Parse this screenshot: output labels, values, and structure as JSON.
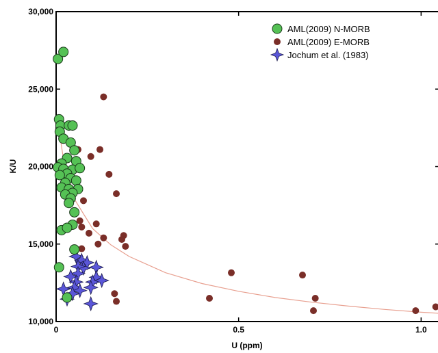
{
  "chart_data": {
    "type": "scatter",
    "xlabel": "U (ppm)",
    "ylabel": "K/U",
    "xlim": [
      0,
      1.05
    ],
    "ylim": [
      10000,
      30000
    ],
    "x_ticks": [
      0,
      0.5,
      1.0
    ],
    "x_tick_labels": [
      "0",
      "0.5",
      "1.0"
    ],
    "y_ticks": [
      10000,
      15000,
      20000,
      25000,
      30000
    ],
    "y_tick_labels": [
      "10,000",
      "15,000",
      "20,000",
      "25,000",
      "30,000"
    ],
    "legend_position": "top-right",
    "colors": {
      "n_morb": "#55c155",
      "e_morb": "#7a2e28",
      "jochum": "#5a56d8",
      "fit": "#e8a090"
    },
    "fit_curve": {
      "points": [
        {
          "x": 0.005,
          "y": 22800
        },
        {
          "x": 0.02,
          "y": 20500
        },
        {
          "x": 0.05,
          "y": 17900
        },
        {
          "x": 0.1,
          "y": 16000
        },
        {
          "x": 0.15,
          "y": 14950
        },
        {
          "x": 0.2,
          "y": 14200
        },
        {
          "x": 0.3,
          "y": 13150
        },
        {
          "x": 0.4,
          "y": 12450
        },
        {
          "x": 0.5,
          "y": 11950
        },
        {
          "x": 0.6,
          "y": 11550
        },
        {
          "x": 0.7,
          "y": 11250
        },
        {
          "x": 0.8,
          "y": 11000
        },
        {
          "x": 0.9,
          "y": 10780
        },
        {
          "x": 1.0,
          "y": 10600
        },
        {
          "x": 1.05,
          "y": 10530
        }
      ]
    },
    "series": [
      {
        "name": "AML(2009) N-MORB",
        "marker": "circle",
        "points": [
          {
            "x": 0.005,
            "y": 26950
          },
          {
            "x": 0.02,
            "y": 27400
          },
          {
            "x": 0.008,
            "y": 23050
          },
          {
            "x": 0.012,
            "y": 22650
          },
          {
            "x": 0.035,
            "y": 22650
          },
          {
            "x": 0.045,
            "y": 22650
          },
          {
            "x": 0.01,
            "y": 22250
          },
          {
            "x": 0.02,
            "y": 21800
          },
          {
            "x": 0.04,
            "y": 21550
          },
          {
            "x": 0.05,
            "y": 21050
          },
          {
            "x": 0.03,
            "y": 20550
          },
          {
            "x": 0.055,
            "y": 20350
          },
          {
            "x": 0.015,
            "y": 20200
          },
          {
            "x": 0.005,
            "y": 19950
          },
          {
            "x": 0.02,
            "y": 19850
          },
          {
            "x": 0.045,
            "y": 19800
          },
          {
            "x": 0.065,
            "y": 19900
          },
          {
            "x": 0.03,
            "y": 19550
          },
          {
            "x": 0.01,
            "y": 19450
          },
          {
            "x": 0.04,
            "y": 19250
          },
          {
            "x": 0.055,
            "y": 19100
          },
          {
            "x": 0.025,
            "y": 18950
          },
          {
            "x": 0.015,
            "y": 18650
          },
          {
            "x": 0.035,
            "y": 18550
          },
          {
            "x": 0.06,
            "y": 18550
          },
          {
            "x": 0.045,
            "y": 18300
          },
          {
            "x": 0.025,
            "y": 18200
          },
          {
            "x": 0.04,
            "y": 17950
          },
          {
            "x": 0.035,
            "y": 17650
          },
          {
            "x": 0.05,
            "y": 17050
          },
          {
            "x": 0.045,
            "y": 16250
          },
          {
            "x": 0.015,
            "y": 15900
          },
          {
            "x": 0.03,
            "y": 16050
          },
          {
            "x": 0.05,
            "y": 14650
          },
          {
            "x": 0.008,
            "y": 13500
          },
          {
            "x": 0.03,
            "y": 11550
          }
        ]
      },
      {
        "name": "AML(2009) E-MORB",
        "marker": "circle",
        "points": [
          {
            "x": 0.13,
            "y": 24500
          },
          {
            "x": 0.12,
            "y": 21100
          },
          {
            "x": 0.06,
            "y": 21100
          },
          {
            "x": 0.095,
            "y": 20650
          },
          {
            "x": 0.145,
            "y": 19500
          },
          {
            "x": 0.165,
            "y": 18250
          },
          {
            "x": 0.075,
            "y": 17800
          },
          {
            "x": 0.065,
            "y": 16500
          },
          {
            "x": 0.11,
            "y": 16300
          },
          {
            "x": 0.07,
            "y": 16100
          },
          {
            "x": 0.09,
            "y": 15700
          },
          {
            "x": 0.13,
            "y": 15400
          },
          {
            "x": 0.185,
            "y": 15550
          },
          {
            "x": 0.18,
            "y": 15300
          },
          {
            "x": 0.115,
            "y": 15000
          },
          {
            "x": 0.19,
            "y": 14850
          },
          {
            "x": 0.07,
            "y": 14700
          },
          {
            "x": 0.16,
            "y": 11800
          },
          {
            "x": 0.165,
            "y": 11300
          },
          {
            "x": 0.42,
            "y": 11500
          },
          {
            "x": 0.48,
            "y": 13150
          },
          {
            "x": 0.675,
            "y": 13000
          },
          {
            "x": 0.71,
            "y": 11500
          },
          {
            "x": 0.705,
            "y": 10700
          },
          {
            "x": 0.985,
            "y": 10700
          },
          {
            "x": 1.04,
            "y": 10950
          }
        ]
      },
      {
        "name": "Jochum et al. (1983)",
        "marker": "star",
        "points": [
          {
            "x": 0.055,
            "y": 14200
          },
          {
            "x": 0.07,
            "y": 13950
          },
          {
            "x": 0.085,
            "y": 13800
          },
          {
            "x": 0.075,
            "y": 13450
          },
          {
            "x": 0.06,
            "y": 13550
          },
          {
            "x": 0.06,
            "y": 13100
          },
          {
            "x": 0.11,
            "y": 13500
          },
          {
            "x": 0.04,
            "y": 12900
          },
          {
            "x": 0.11,
            "y": 12850
          },
          {
            "x": 0.1,
            "y": 12550
          },
          {
            "x": 0.125,
            "y": 12650
          },
          {
            "x": 0.055,
            "y": 12550
          },
          {
            "x": 0.05,
            "y": 12200
          },
          {
            "x": 0.02,
            "y": 12100
          },
          {
            "x": 0.095,
            "y": 12200
          },
          {
            "x": 0.065,
            "y": 12000
          },
          {
            "x": 0.03,
            "y": 11450
          },
          {
            "x": 0.095,
            "y": 11150
          },
          {
            "x": 0.045,
            "y": 11800
          }
        ]
      }
    ]
  }
}
